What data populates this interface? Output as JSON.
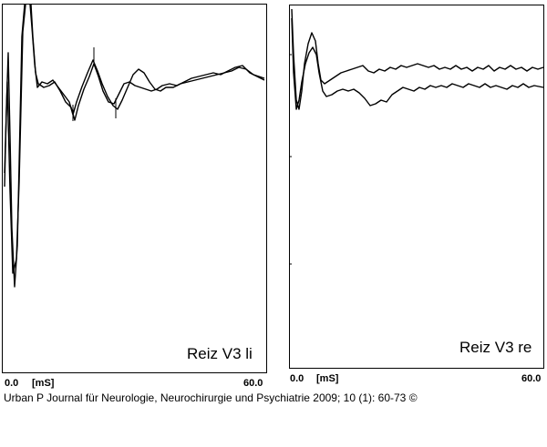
{
  "panels": [
    {
      "label": "Reiz V3 li",
      "x_start": "0.0",
      "x_unit": "[mS]",
      "x_end": "60.0"
    },
    {
      "label": "Reiz V3 re",
      "x_start": "0.0",
      "x_unit": "[mS]",
      "x_end": "60.0"
    }
  ],
  "caption": "Urban P Journal für Neurologie, Neurochirurgie und Psychiatrie 2009; 10 (1): 60-73 ©"
}
